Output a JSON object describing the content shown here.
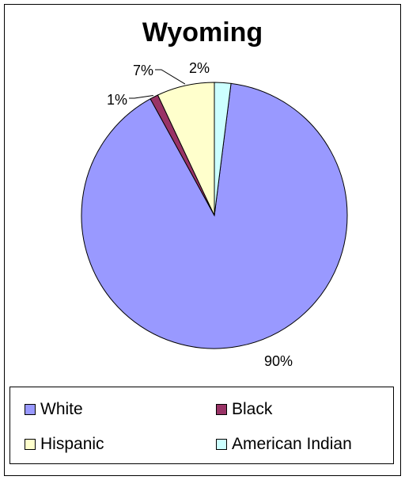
{
  "chart_data": {
    "type": "pie",
    "title": "Wyoming",
    "categories": [
      "White",
      "Black",
      "Hispanic",
      "American Indian"
    ],
    "values": [
      90,
      1,
      7,
      2
    ],
    "data_labels": [
      "90%",
      "1%",
      "7%",
      "2%"
    ],
    "colors": [
      "#9999FF",
      "#993366",
      "#FFFFCC",
      "#CCFFFF"
    ],
    "legend_position": "bottom"
  }
}
